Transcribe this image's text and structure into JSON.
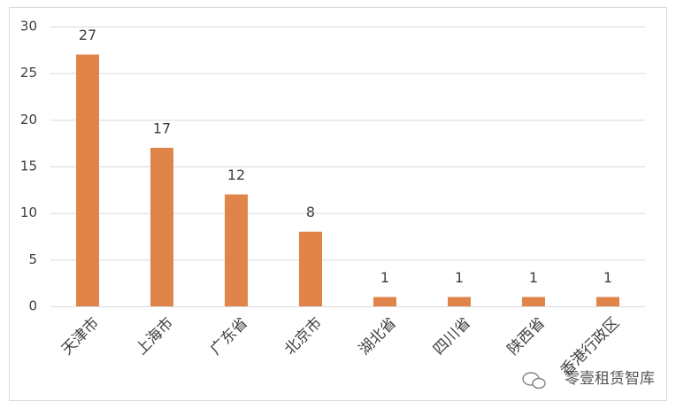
{
  "chart_data": {
    "type": "bar",
    "categories": [
      "天津市",
      "上海市",
      "广东省",
      "北京市",
      "湖北省",
      "四川省",
      "陕西省",
      "香港行政区"
    ],
    "values": [
      27,
      17,
      12,
      8,
      1,
      1,
      1,
      1
    ],
    "color": "#e0844a",
    "ylim": [
      0,
      30
    ],
    "yticks": [
      0,
      5,
      10,
      15,
      20,
      25,
      30
    ],
    "grid": true,
    "watermark": "零壹租赁智库"
  }
}
